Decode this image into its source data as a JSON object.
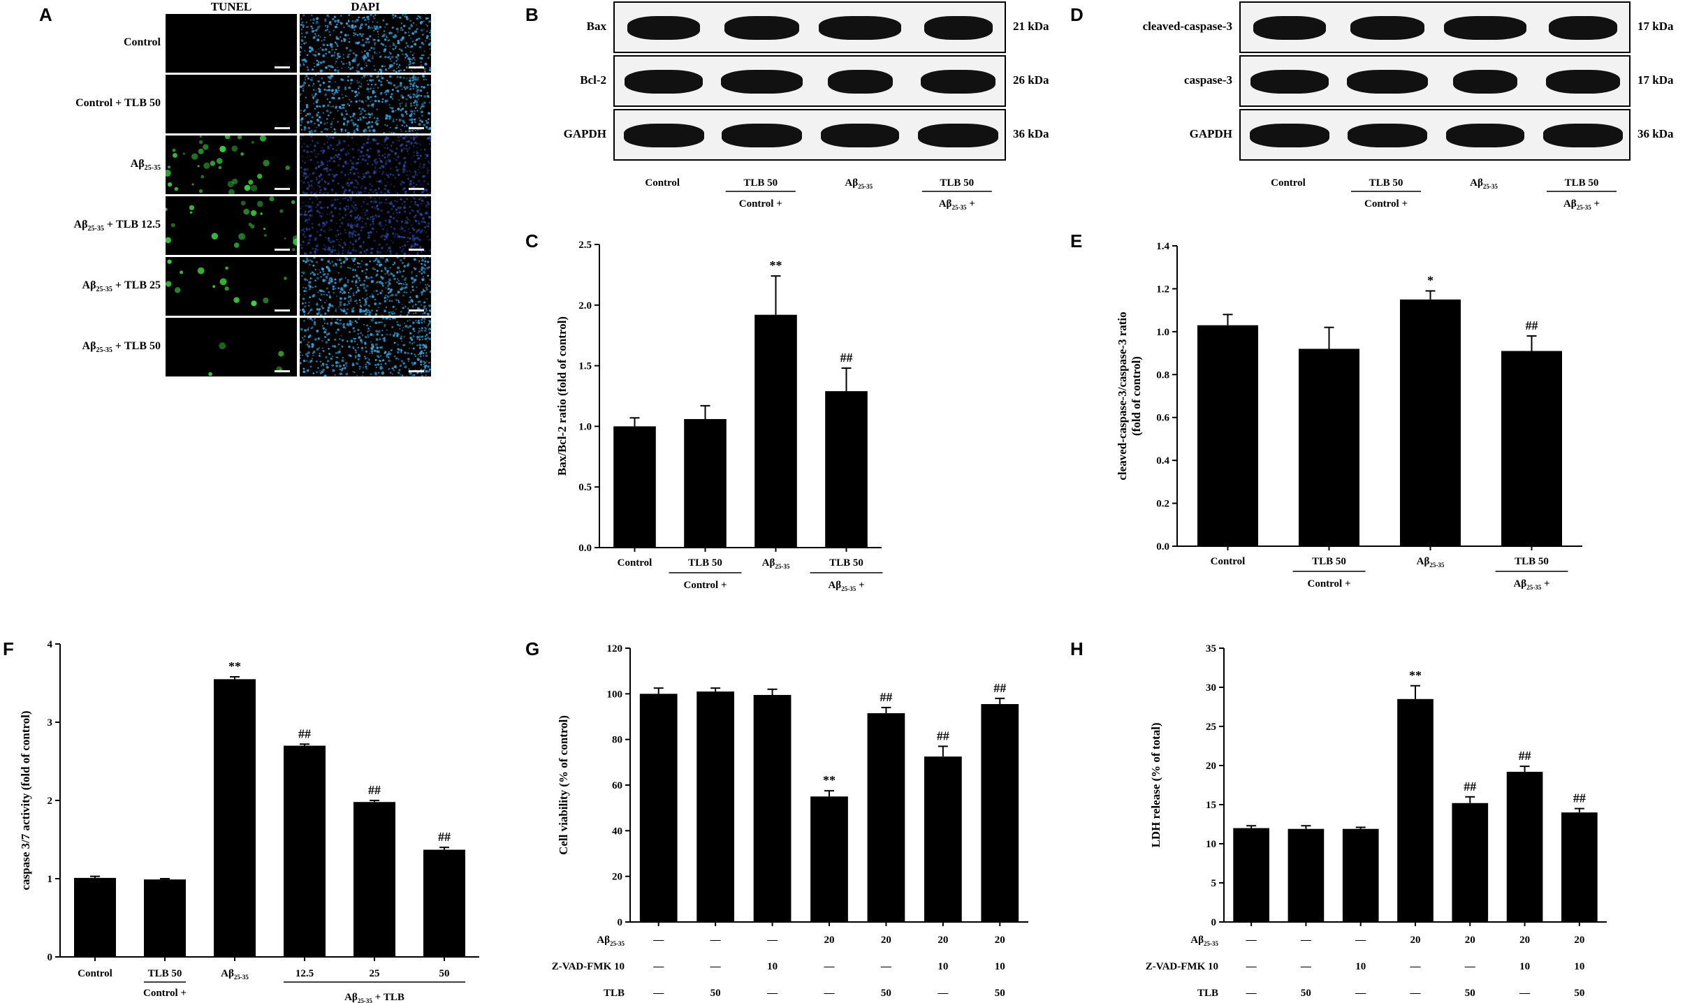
{
  "panels": {
    "A": {
      "label": "A",
      "col_headers": [
        "TUNEL",
        "DAPI"
      ],
      "rows": [
        {
          "main": "Control",
          "sub": "",
          "tail": ""
        },
        {
          "main": "Control + TLB 50",
          "sub": "",
          "tail": ""
        },
        {
          "main": "Aβ",
          "sub": "25-35",
          "tail": ""
        },
        {
          "main": "Aβ",
          "sub": "25-35",
          "tail": " + TLB 12.5"
        },
        {
          "main": "Aβ",
          "sub": "25-35",
          "tail": " + TLB 25"
        },
        {
          "main": "Aβ",
          "sub": "25-35",
          "tail": " + TLB 50"
        }
      ],
      "tunel_density": [
        0,
        0,
        0.9,
        0.6,
        0.35,
        0.12
      ],
      "dapi_tone": [
        "bright",
        "bright",
        "dim",
        "dim",
        "bright",
        "bright"
      ],
      "colors": {
        "tunel": "#3fcf45",
        "dapi": "#3aa0d8",
        "dapi_dim": "#2e4fb0"
      }
    },
    "B": {
      "label": "B",
      "blots": [
        {
          "name": "Bax",
          "kda": "21 kDa"
        },
        {
          "name": "Bcl-2",
          "kda": "26 kDa"
        },
        {
          "name": "GAPDH",
          "kda": "36 kDa"
        }
      ]
    },
    "D": {
      "label": "D",
      "blots": [
        {
          "name": "cleaved-caspase-3",
          "kda": "17 kDa"
        },
        {
          "name": "caspase-3",
          "kda": "17 kDa"
        },
        {
          "name": "GAPDH",
          "kda": "36 kDa"
        }
      ]
    },
    "C": {
      "label": "C"
    },
    "E": {
      "label": "E"
    },
    "F": {
      "label": "F"
    },
    "G": {
      "label": "G"
    },
    "H": {
      "label": "H"
    }
  },
  "wb_lanes": {
    "lanes": [
      {
        "main": "Control",
        "sub": "",
        "tail": ""
      },
      {
        "main": "TLB 50",
        "sub": "",
        "tail": ""
      },
      {
        "main": "Aβ",
        "sub": "25-35",
        "tail": ""
      },
      {
        "main": "TLB 50",
        "sub": "",
        "tail": ""
      }
    ],
    "groups": [
      {
        "main": "Control +",
        "sub": "",
        "tail": ""
      },
      {
        "main": "Aβ",
        "sub": "25-35",
        "tail": " +"
      }
    ]
  },
  "chart_data": [
    {
      "id": "C",
      "type": "bar",
      "ylabel": "Bax/Bcl-2 ratio (fold of control)",
      "ylim": [
        0,
        2.5
      ],
      "yticks": [
        0,
        0.5,
        1.0,
        1.5,
        2.0,
        2.5
      ],
      "tick_labels": [
        "0.0",
        "0.5",
        "1.0",
        "1.5",
        "2.0",
        "2.5"
      ],
      "values": [
        1.0,
        1.06,
        1.92,
        1.29
      ],
      "errors": [
        0.07,
        0.11,
        0.32,
        0.19
      ],
      "annotations": [
        "",
        "",
        "**",
        "##"
      ]
    },
    {
      "id": "E",
      "type": "bar",
      "ylabel": "cleaved-caspase-3/caspase-3 ratio (fold of control)",
      "ylabel_lines": [
        "cleaved-caspase-3/caspase-3 ratio",
        "(fold of control)"
      ],
      "ylim": [
        0,
        1.4
      ],
      "yticks": [
        0,
        0.2,
        0.4,
        0.6,
        0.8,
        1.0,
        1.2,
        1.4
      ],
      "tick_labels": [
        "0.0",
        "0.2",
        "0.4",
        "0.6",
        "0.8",
        "1.0",
        "1.2",
        "1.4"
      ],
      "values": [
        1.03,
        0.92,
        1.15,
        0.91
      ],
      "errors": [
        0.05,
        0.1,
        0.04,
        0.07
      ],
      "annotations": [
        "",
        "",
        "*",
        "##"
      ]
    },
    {
      "id": "F",
      "type": "bar",
      "ylabel": "caspase 3/7 activity (fold of control)",
      "ylim": [
        0,
        4
      ],
      "yticks": [
        0,
        1,
        2,
        3,
        4
      ],
      "tick_labels": [
        "0",
        "1",
        "2",
        "3",
        "4"
      ],
      "categories": [
        "Control",
        "TLB 50",
        "Aβ",
        "12.5",
        "25",
        "50"
      ],
      "category_subs": [
        "",
        "",
        "25-35",
        "",
        "",
        ""
      ],
      "group_labels": [
        {
          "main": "Control +",
          "sub": "",
          "tail": ""
        },
        {
          "main": "Aβ",
          "sub": "25-35",
          "tail": " + TLB"
        }
      ],
      "values": [
        1.01,
        0.99,
        3.55,
        2.7,
        1.98,
        1.37
      ],
      "errors": [
        0.02,
        0.01,
        0.03,
        0.02,
        0.02,
        0.03
      ],
      "annotations": [
        "",
        "",
        "**",
        "##",
        "##",
        "##"
      ]
    },
    {
      "id": "G",
      "type": "bar",
      "ylabel": "Cell viability (% of control)",
      "ylim": [
        0,
        120
      ],
      "yticks": [
        0,
        20,
        40,
        60,
        80,
        100,
        120
      ],
      "tick_labels": [
        "0",
        "20",
        "40",
        "60",
        "80",
        "100",
        "120"
      ],
      "values": [
        100,
        101,
        99.5,
        55,
        91.5,
        72.5,
        95.5
      ],
      "errors": [
        2.5,
        1.5,
        2.5,
        2.5,
        2.5,
        4.5,
        2.5
      ],
      "annotations": [
        "",
        "",
        "",
        "**",
        "##",
        "##",
        "##"
      ],
      "table_rows": [
        {
          "label": "Aβ",
          "sub": "25-35",
          "cells": [
            "—",
            "—",
            "—",
            "20",
            "20",
            "20",
            "20"
          ]
        },
        {
          "label": "Z-VAD-FMK 10",
          "sub": "",
          "cells": [
            "—",
            "—",
            "10",
            "—",
            "—",
            "10",
            "10"
          ]
        },
        {
          "label": "TLB",
          "sub": "",
          "cells": [
            "—",
            "50",
            "—",
            "—",
            "50",
            "—",
            "50"
          ]
        }
      ]
    },
    {
      "id": "H",
      "type": "bar",
      "ylabel": "LDH release (% of total)",
      "ylim": [
        0,
        35
      ],
      "yticks": [
        0,
        5,
        10,
        15,
        20,
        25,
        30,
        35
      ],
      "tick_labels": [
        "0",
        "5",
        "10",
        "15",
        "20",
        "25",
        "30",
        "35"
      ],
      "values": [
        12.0,
        11.9,
        11.9,
        28.5,
        15.2,
        19.2,
        14.0
      ],
      "errors": [
        0.3,
        0.4,
        0.2,
        1.7,
        0.8,
        0.7,
        0.5
      ],
      "annotations": [
        "",
        "",
        "",
        "**",
        "##",
        "##",
        "##"
      ],
      "table_rows": [
        {
          "label": "Aβ",
          "sub": "25-35",
          "cells": [
            "—",
            "—",
            "—",
            "20",
            "20",
            "20",
            "20"
          ]
        },
        {
          "label": "Z-VAD-FMK 10",
          "sub": "",
          "cells": [
            "—",
            "—",
            "10",
            "—",
            "—",
            "10",
            "10"
          ]
        },
        {
          "label": "TLB",
          "sub": "",
          "cells": [
            "—",
            "50",
            "—",
            "—",
            "50",
            "—",
            "50"
          ]
        }
      ]
    }
  ]
}
